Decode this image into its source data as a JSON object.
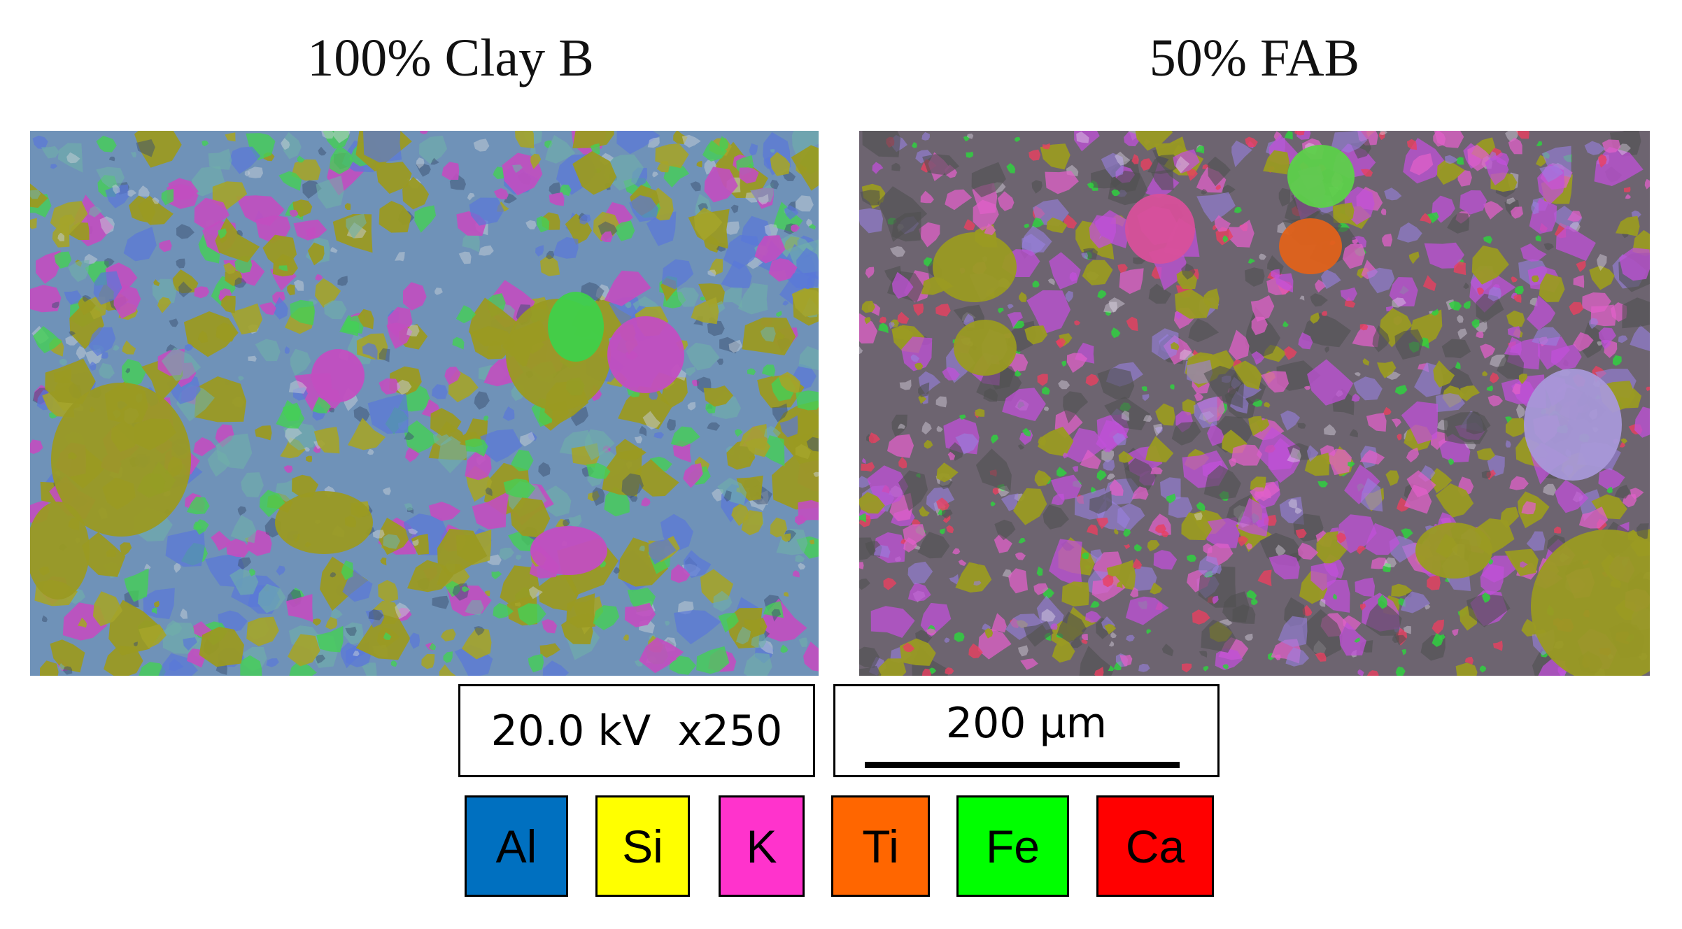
{
  "panels": [
    {
      "title": "100% Clay B"
    },
    {
      "title": "50% FAB"
    }
  ],
  "info": {
    "conditions": "20.0 kV  x250",
    "scale_bar": "200 μm"
  },
  "legend": [
    {
      "label": "Al",
      "color": "#0070c0"
    },
    {
      "label": "Si",
      "color": "#ffff00"
    },
    {
      "label": "K",
      "color": "#ff33cc"
    },
    {
      "label": "Ti",
      "color": "#ff6600"
    },
    {
      "label": "Fe",
      "color": "#00ff00"
    },
    {
      "label": "Ca",
      "color": "#ff0000"
    }
  ]
}
